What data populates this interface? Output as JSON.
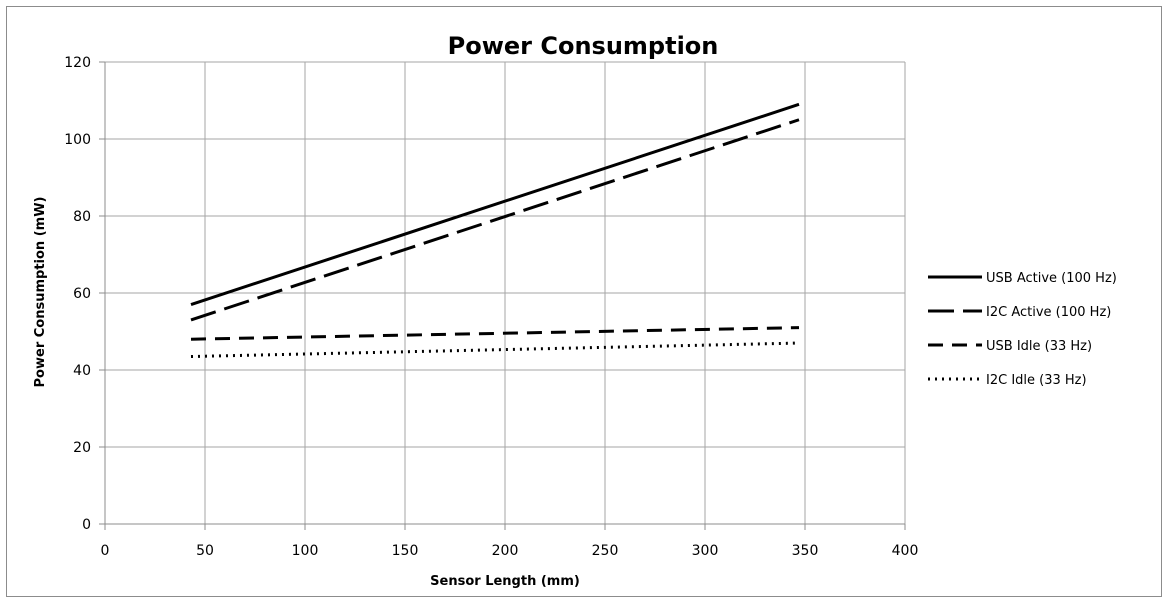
{
  "chart_data": {
    "type": "line",
    "title": "Power Consumption",
    "xlabel": "Sensor Length (mm)",
    "ylabel": "Power Consumption (mW)",
    "xlim": [
      0,
      400
    ],
    "ylim": [
      0,
      120
    ],
    "xticks": [
      0,
      50,
      100,
      150,
      200,
      250,
      300,
      350,
      400
    ],
    "yticks": [
      0,
      20,
      40,
      60,
      80,
      100,
      120
    ],
    "grid": true,
    "legend_position": "right",
    "series": [
      {
        "name": "USB Active (100 Hz)",
        "style": "solid",
        "x": [
          43,
          347
        ],
        "y": [
          57,
          109
        ]
      },
      {
        "name": "I2C Active (100 Hz)",
        "style": "long-dash",
        "x": [
          43,
          347
        ],
        "y": [
          53,
          105
        ]
      },
      {
        "name": "USB Idle (33 Hz)",
        "style": "dash",
        "x": [
          43,
          347
        ],
        "y": [
          48,
          51
        ]
      },
      {
        "name": "I2C Idle (33 Hz)",
        "style": "dot",
        "x": [
          43,
          347
        ],
        "y": [
          43.5,
          47
        ]
      }
    ]
  }
}
